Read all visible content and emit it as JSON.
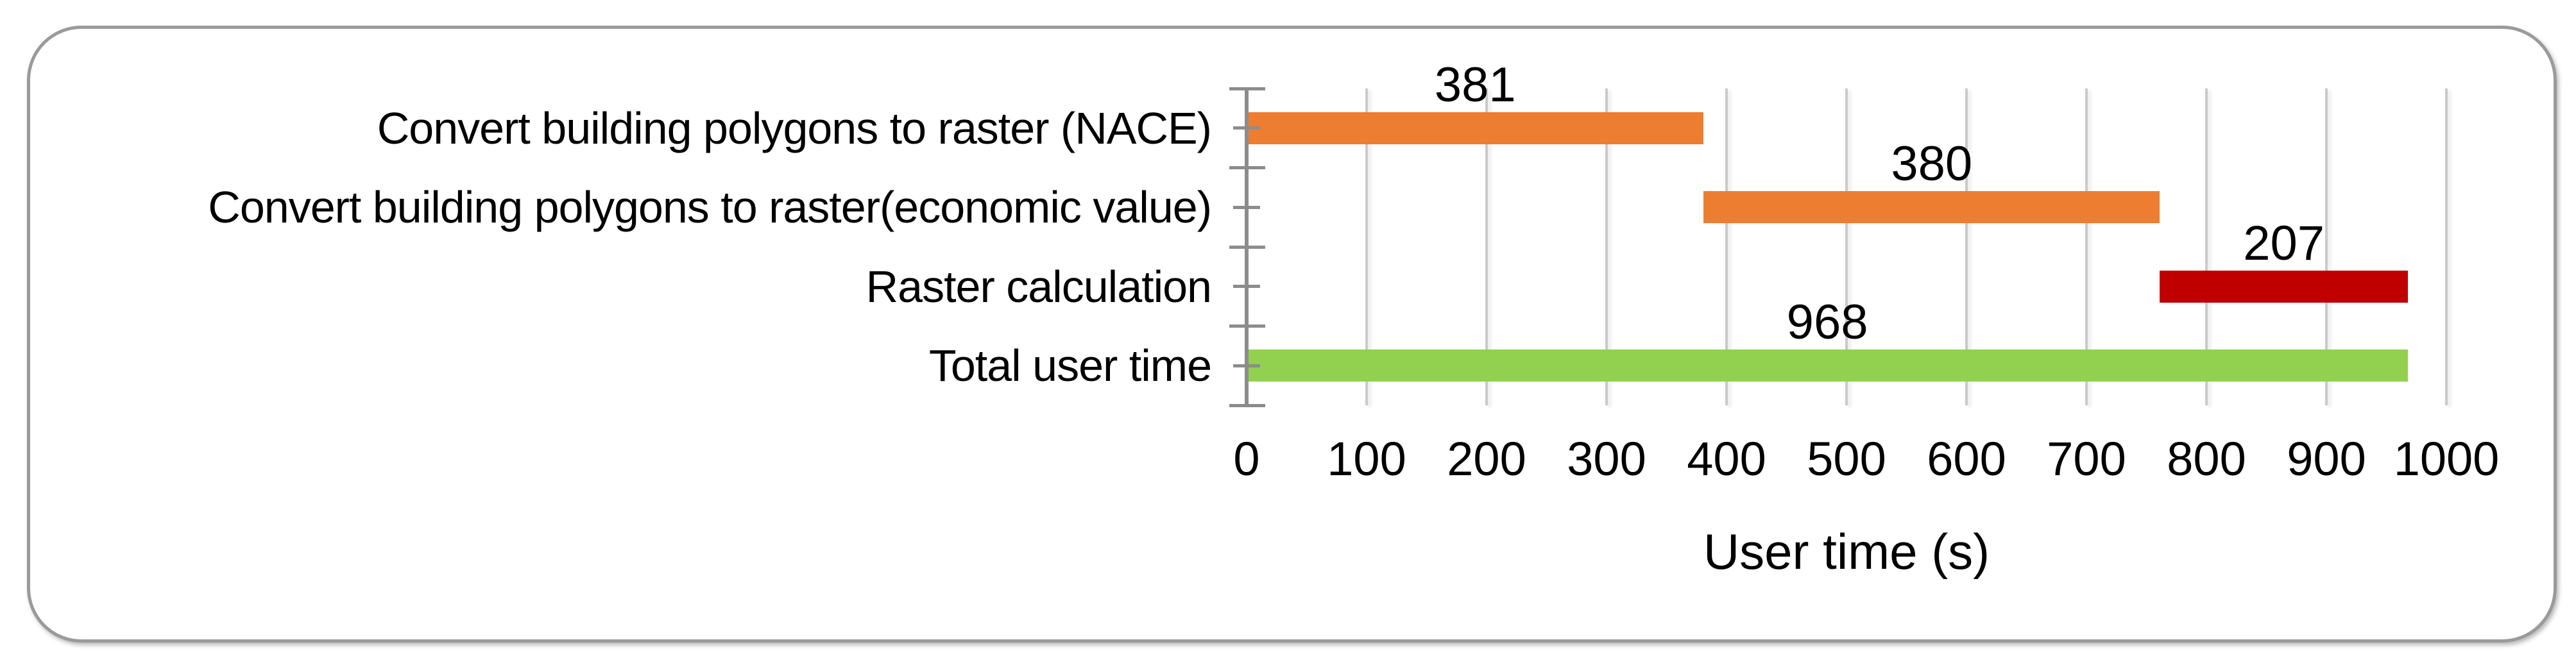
{
  "chart_data": {
    "type": "bar",
    "orientation": "horizontal",
    "title": "",
    "xlabel": "User time (s)",
    "ylabel": "",
    "xlim": [
      0,
      1000
    ],
    "x_ticks": [
      0,
      100,
      200,
      300,
      400,
      500,
      600,
      700,
      800,
      900,
      1000
    ],
    "grid": true,
    "legend": false,
    "categories": [
      "Convert building polygons to raster (NACE)",
      "Convert building polygons to raster(economic value)",
      "Raster calculation",
      "Total user time"
    ],
    "bars": [
      {
        "category": "Convert building polygons to raster (NACE)",
        "start": 0,
        "value": 381,
        "label": "381",
        "color": "#ED7D31"
      },
      {
        "category": "Convert building polygons to raster(economic value)",
        "start": 381,
        "value": 380,
        "label": "380",
        "color": "#ED7D31"
      },
      {
        "category": "Raster calculation",
        "start": 761,
        "value": 207,
        "label": "207",
        "color": "#C00000"
      },
      {
        "category": "Total user time",
        "start": 0,
        "value": 968,
        "label": "968",
        "color": "#92D050"
      }
    ],
    "colors": {
      "orange": "#ED7D31",
      "dark_red": "#C00000",
      "green": "#92D050",
      "gridline": "#CACACA",
      "axis": "#8C8C8C",
      "frame_border": "#9A9A9A",
      "text": "#000000",
      "background": "#FFFFFF"
    }
  }
}
